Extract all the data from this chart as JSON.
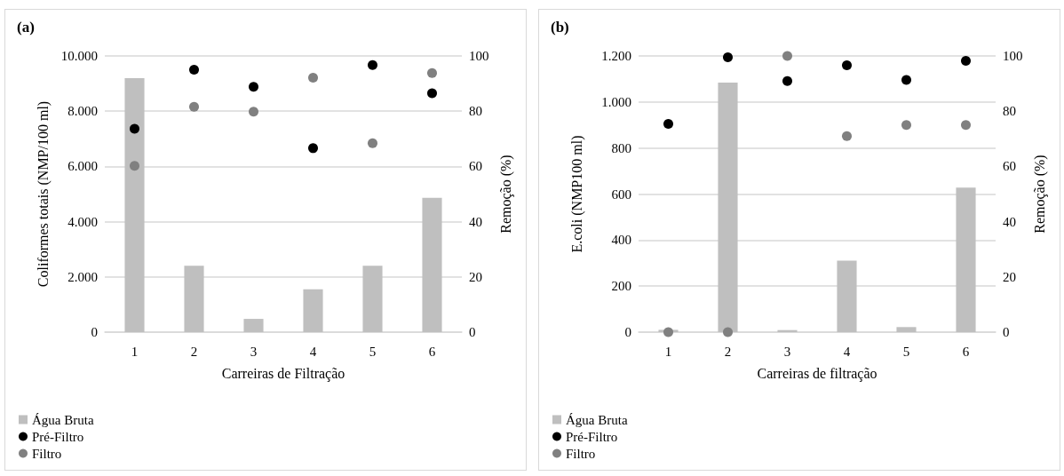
{
  "chart_data": [
    {
      "type": "bar",
      "title": "(a)",
      "xlabel": "Carreiras de Filtração",
      "ylabel": "Coliformes totais (NMP/100 ml)",
      "y2label": "Remoção (%)",
      "categories": [
        "1",
        "2",
        "3",
        "4",
        "5",
        "6"
      ],
      "ylim": [
        0,
        10000
      ],
      "yticks": [
        0,
        {
          "value": 2000,
          "label": "2.000"
        },
        {
          "value": 4000,
          "label": "4.000"
        },
        {
          "value": 6000,
          "label": "6.000"
        },
        {
          "value": 8000,
          "label": "8.000"
        },
        {
          "value": 10000,
          "label": "10.000"
        }
      ],
      "y2lim": [
        0,
        100
      ],
      "y2ticks": [
        0,
        20,
        40,
        60,
        80,
        100
      ],
      "grid": "y",
      "legend": "bottom left",
      "marker": "circle",
      "series": [
        {
          "name": "Água Bruta",
          "color": "#bfbfbf",
          "values": [
            9200,
            2400,
            480,
            1550,
            2400,
            4860
          ]
        },
        {
          "name": "Pré-Filtro",
          "type": "scatter",
          "axis": "y2",
          "color": "#000000",
          "values": [
            73.6,
            95.0,
            88.8,
            66.6,
            96.7,
            86.5
          ]
        },
        {
          "name": "Filtro",
          "type": "scatter",
          "axis": "y2",
          "color": "#808080",
          "values": [
            60.2,
            81.6,
            79.8,
            92.1,
            68.4,
            93.8
          ]
        }
      ]
    },
    {
      "type": "bar",
      "title": "(b)",
      "xlabel": "Carreiras de filtração",
      "ylabel": "E.coli (NMP100 ml)",
      "y2label": "Remoção (%)",
      "categories": [
        "1",
        "2",
        "3",
        "4",
        "5",
        "6"
      ],
      "ylim": [
        0,
        1200
      ],
      "yticks": [
        0,
        200,
        400,
        600,
        800,
        {
          "value": 1000,
          "label": "1.000"
        },
        {
          "value": 1200,
          "label": "1.200"
        }
      ],
      "y2lim": [
        0,
        100
      ],
      "y2ticks": [
        0,
        20,
        40,
        60,
        80,
        100
      ],
      "grid": "y",
      "legend": "bottom left",
      "marker": "circle",
      "series": [
        {
          "name": "Água Bruta",
          "color": "#bfbfbf",
          "values": [
            10,
            1084,
            9,
            311,
            22,
            628
          ]
        },
        {
          "name": "Pré-Filtro",
          "type": "scatter",
          "axis": "y2",
          "color": "#000000",
          "values": [
            75.4,
            99.5,
            90.9,
            96.6,
            91.3,
            98.2
          ]
        },
        {
          "name": "Filtro",
          "type": "scatter",
          "axis": "y2",
          "color": "#808080",
          "values": [
            0,
            0,
            100,
            71.0,
            75.0,
            75.0
          ]
        }
      ]
    }
  ]
}
